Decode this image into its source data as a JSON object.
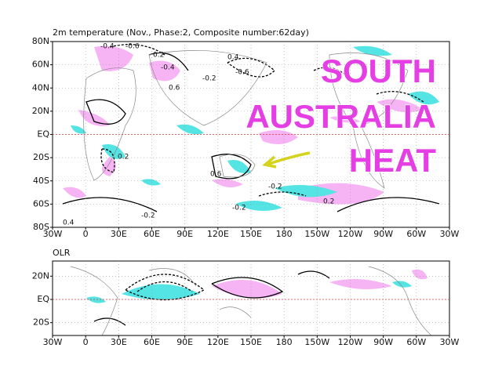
{
  "maps": [
    {
      "title": "2m temperature (Nov., Phase:2, Composite number:62day)",
      "lat_labels": [
        "80N",
        "60N",
        "40N",
        "20N",
        "EQ",
        "20S",
        "40S",
        "60S",
        "80S"
      ],
      "lon_labels": [
        "30W",
        "0",
        "30E",
        "60E",
        "90E",
        "120E",
        "150E",
        "180",
        "150W",
        "120W",
        "90W",
        "60W",
        "30W"
      ],
      "contour_labels": [
        "-0.4",
        "-0.6",
        "0.2",
        "-0.4",
        "0.6",
        "-0.2",
        "0.4",
        "-0.6",
        "0.2",
        "0.6",
        "-0.2",
        "0.2",
        "-0.2",
        "0.4",
        "-0.2"
      ]
    },
    {
      "title": "OLR",
      "lat_labels": [
        "20N",
        "EQ",
        "20S"
      ],
      "lon_labels": [
        "30W",
        "0",
        "30E",
        "60E",
        "90E",
        "120E",
        "150E",
        "180",
        "150W",
        "120W",
        "90W",
        "60W",
        "30W"
      ]
    }
  ],
  "annotation": [
    "SOUTH",
    "AUSTRALIA",
    "HEAT"
  ]
}
